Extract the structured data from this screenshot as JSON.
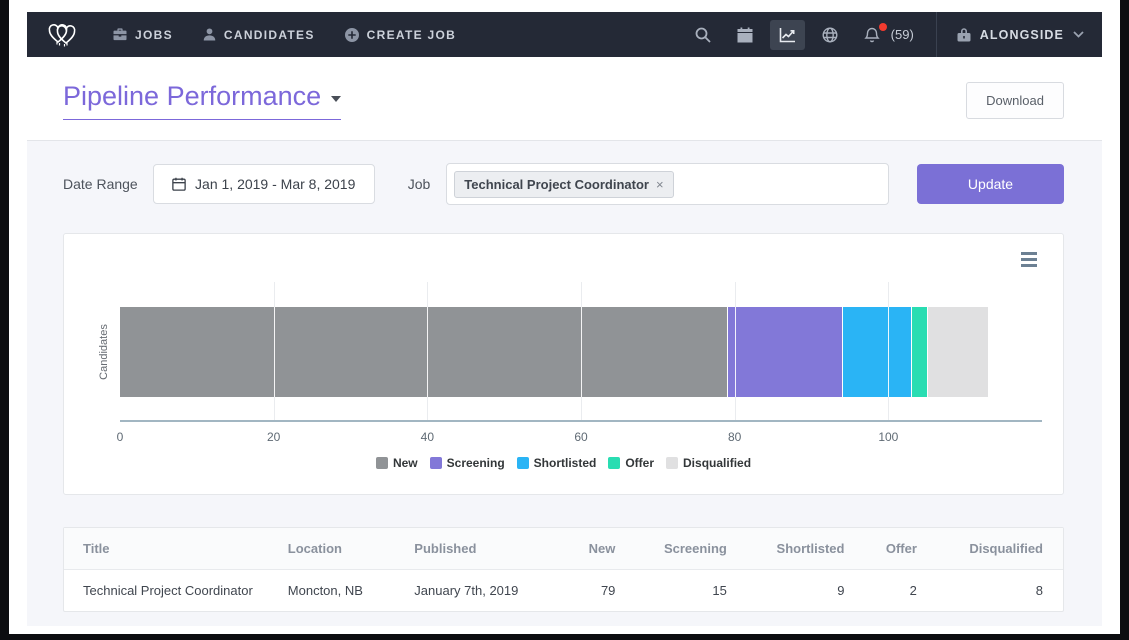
{
  "nav": {
    "items": [
      {
        "label": "JOBS"
      },
      {
        "label": "CANDIDATES"
      },
      {
        "label": "CREATE JOB"
      }
    ],
    "notification_count": "(59)",
    "account_label": "ALONGSIDE"
  },
  "header": {
    "title": "Pipeline Performance",
    "download_label": "Download"
  },
  "filters": {
    "date_range_label": "Date Range",
    "date_range_value": "Jan 1, 2019 - Mar 8, 2019",
    "job_label": "Job",
    "job_tag": "Technical Project Coordinator",
    "update_label": "Update"
  },
  "chart_data": {
    "type": "bar",
    "orientation": "horizontal",
    "stacked": true,
    "categories": [
      "Candidates"
    ],
    "series": [
      {
        "name": "New",
        "values": [
          79
        ],
        "color": "#909396"
      },
      {
        "name": "Screening",
        "values": [
          15
        ],
        "color": "#8278d8"
      },
      {
        "name": "Shortlisted",
        "values": [
          9
        ],
        "color": "#2ab4f5"
      },
      {
        "name": "Offer",
        "values": [
          2
        ],
        "color": "#29ddb2"
      },
      {
        "name": "Disqualified",
        "values": [
          8
        ],
        "color": "#e0e0e1"
      }
    ],
    "title": "",
    "xlabel": "",
    "ylabel": "Candidates",
    "xlim": [
      0,
      120
    ],
    "xticks": [
      0,
      20,
      40,
      60,
      80,
      100
    ],
    "grid": true,
    "legend_position": "bottom"
  },
  "table": {
    "columns": [
      "Title",
      "Location",
      "Published",
      "New",
      "Screening",
      "Shortlisted",
      "Offer",
      "Disqualified"
    ],
    "numeric_columns_from": 3,
    "rows": [
      [
        "Technical Project Coordinator",
        "Moncton, NB",
        "January 7th, 2019",
        "79",
        "15",
        "9",
        "2",
        "8"
      ]
    ]
  }
}
